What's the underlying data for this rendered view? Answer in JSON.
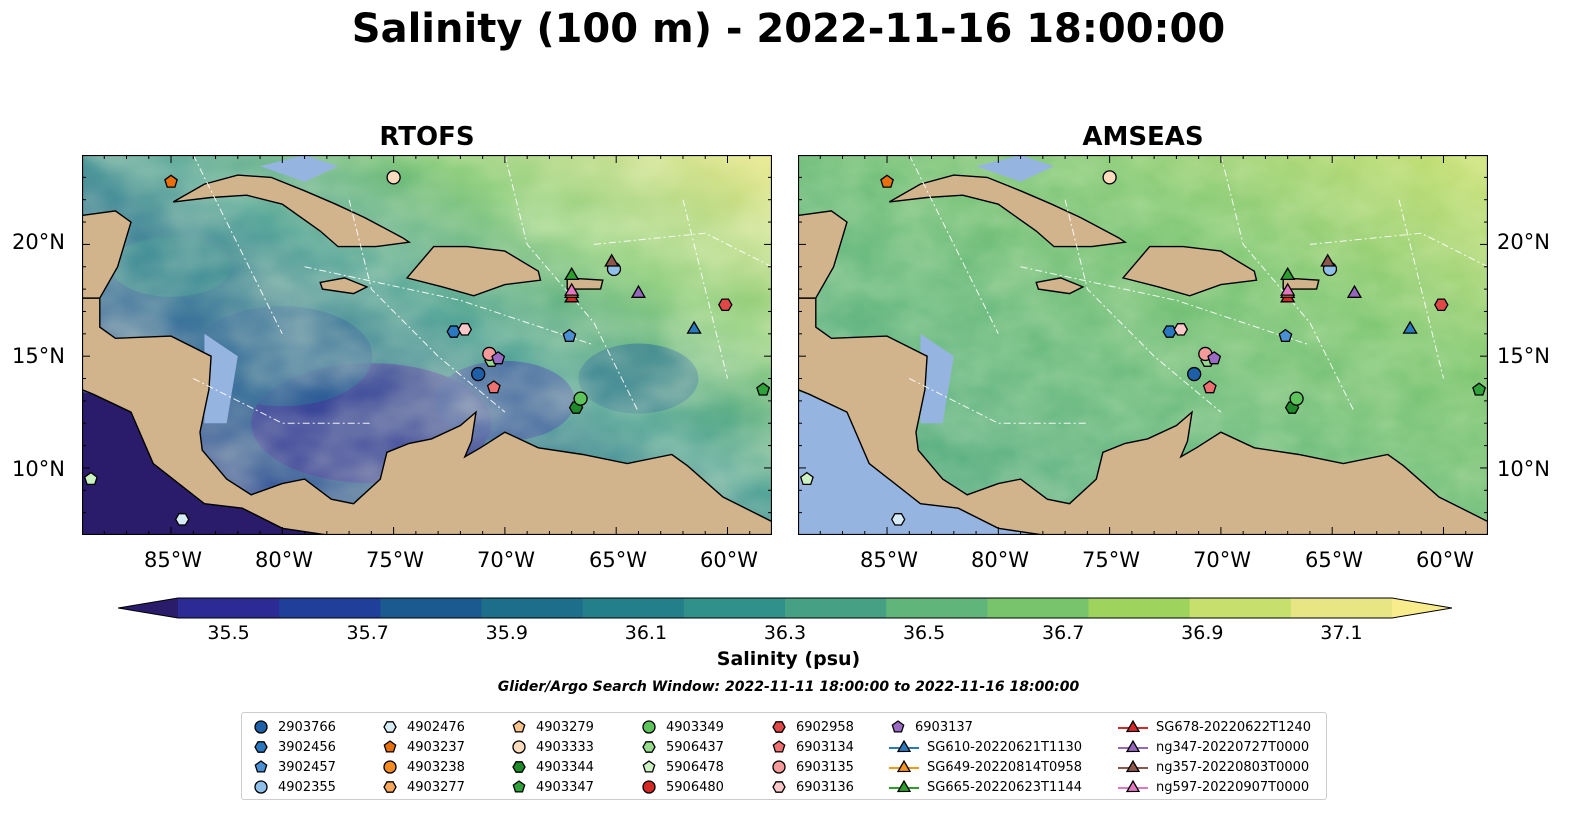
{
  "title": "Salinity (100 m) - 2022-11-16 18:00:00",
  "panels": [
    {
      "id": "rtofs",
      "title": "RTOFS"
    },
    {
      "id": "amseas",
      "title": "AMSEAS"
    }
  ],
  "map": {
    "lon_range": [
      -89,
      -58
    ],
    "lat_range": [
      7,
      24
    ],
    "lat_ticks": [
      {
        "value": 20,
        "label": "20°N"
      },
      {
        "value": 15,
        "label": "15°N"
      },
      {
        "value": 10,
        "label": "10°N"
      }
    ],
    "lon_ticks": [
      {
        "value": -85,
        "label": "85°W"
      },
      {
        "value": -80,
        "label": "80°W"
      },
      {
        "value": -75,
        "label": "75°W"
      },
      {
        "value": -70,
        "label": "70°W"
      },
      {
        "value": -65,
        "label": "65°W"
      },
      {
        "value": -60,
        "label": "60°W"
      }
    ],
    "colors": {
      "land": "#d2b48c",
      "shallow": "#96b4e0",
      "deep": "#2a1b6b"
    }
  },
  "colorbar": {
    "label": "Salinity (psu)",
    "min": 35.4,
    "max": 37.2,
    "ticks": [
      "35.5",
      "35.7",
      "35.9",
      "36.1",
      "36.3",
      "36.5",
      "36.7",
      "36.9",
      "37.1"
    ],
    "colors": [
      "#2a1b6b",
      "#2c2a94",
      "#1f3f9a",
      "#1a5a90",
      "#1d6e8a",
      "#23808a",
      "#2f918a",
      "#46a184",
      "#5fb57a",
      "#78c46d",
      "#9ed45e",
      "#c7df6c",
      "#e8e584",
      "#f9ec8c"
    ]
  },
  "search_window": "Glider/Argo Search Window: 2022-11-11 18:00:00 to 2022-11-16 18:00:00",
  "legend": [
    {
      "label": "2903766",
      "shape": "circle",
      "color": "#1f5fa8"
    },
    {
      "label": "3902456",
      "shape": "hexagon",
      "color": "#2b78c2"
    },
    {
      "label": "3902457",
      "shape": "pentagon",
      "color": "#4a90d4"
    },
    {
      "label": "4902355",
      "shape": "circle",
      "color": "#8ec0ea"
    },
    {
      "label": "4902476",
      "shape": "hexagon",
      "color": "#d8ecf8"
    },
    {
      "label": "4903237",
      "shape": "pentagon",
      "color": "#e86f0c"
    },
    {
      "label": "4903238",
      "shape": "circle",
      "color": "#f58a22"
    },
    {
      "label": "4903277",
      "shape": "hexagon",
      "color": "#f8a85a"
    },
    {
      "label": "4903279",
      "shape": "pentagon",
      "color": "#f9c48c"
    },
    {
      "label": "4903333",
      "shape": "circle",
      "color": "#fbdcbc"
    },
    {
      "label": "4903344",
      "shape": "hexagon",
      "color": "#1e8a2a"
    },
    {
      "label": "4903347",
      "shape": "pentagon",
      "color": "#2fa23a"
    },
    {
      "label": "4903349",
      "shape": "circle",
      "color": "#5cc45a"
    },
    {
      "label": "5906437",
      "shape": "hexagon",
      "color": "#96dc8c"
    },
    {
      "label": "5906478",
      "shape": "pentagon",
      "color": "#ccf2c4"
    },
    {
      "label": "5906480",
      "shape": "circle",
      "color": "#d42a26"
    },
    {
      "label": "6902958",
      "shape": "hexagon",
      "color": "#e04848"
    },
    {
      "label": "6903134",
      "shape": "pentagon",
      "color": "#ee7070"
    },
    {
      "label": "6903135",
      "shape": "circle",
      "color": "#f59a9a"
    },
    {
      "label": "6903136",
      "shape": "hexagon",
      "color": "#fac8c8"
    },
    {
      "label": "6903137",
      "shape": "pentagon",
      "color": "#9a6ac4"
    },
    {
      "label": "SG610-20220621T1130",
      "shape": "triangle",
      "color": "#2a7ac0",
      "line": true
    },
    {
      "label": "SG649-20220814T0958",
      "shape": "triangle",
      "color": "#f7941d",
      "line": true
    },
    {
      "label": "SG665-20220623T1144",
      "shape": "triangle",
      "color": "#2ca02c",
      "line": true
    },
    {
      "label": "SG678-20220622T1240",
      "shape": "triangle",
      "color": "#d62728",
      "line": true
    },
    {
      "label": "ng347-20220727T0000",
      "shape": "triangle",
      "color": "#9467bd",
      "line": true
    },
    {
      "label": "ng357-20220803T0000",
      "shape": "triangle",
      "color": "#8c564b",
      "line": true
    },
    {
      "label": "ng597-20220907T0000",
      "shape": "triangle",
      "color": "#e377c2",
      "line": true
    }
  ],
  "floats": [
    {
      "id": "2903766",
      "lon": -71.2,
      "lat": 14.2
    },
    {
      "id": "3902456",
      "lon": -72.3,
      "lat": 16.1
    },
    {
      "id": "3902457",
      "lon": -67.1,
      "lat": 15.9
    },
    {
      "id": "4902355",
      "lon": -65.1,
      "lat": 18.9
    },
    {
      "id": "4902476",
      "lon": -84.5,
      "lat": 7.7
    },
    {
      "id": "4903237",
      "lon": -85.0,
      "lat": 22.8
    },
    {
      "id": "4903333",
      "lon": -75.0,
      "lat": 23.0
    },
    {
      "id": "4903344",
      "lon": -66.8,
      "lat": 12.7
    },
    {
      "id": "4903347",
      "lon": -58.4,
      "lat": 13.5
    },
    {
      "id": "4903349",
      "lon": -66.6,
      "lat": 13.1
    },
    {
      "id": "5906437",
      "lon": -70.6,
      "lat": 14.8
    },
    {
      "id": "5906478",
      "lon": -88.6,
      "lat": 9.5
    },
    {
      "id": "6902958",
      "lon": -60.1,
      "lat": 17.3
    },
    {
      "id": "6903134",
      "lon": -70.5,
      "lat": 13.6
    },
    {
      "id": "6903135",
      "lon": -70.7,
      "lat": 15.1
    },
    {
      "id": "6903136",
      "lon": -71.8,
      "lat": 16.2
    },
    {
      "id": "6903137",
      "lon": -70.3,
      "lat": 14.9
    },
    {
      "id": "SG610-20220621T1130",
      "lon": -61.5,
      "lat": 16.2
    },
    {
      "id": "SG665-20220623T1144",
      "lon": -67.0,
      "lat": 18.6
    },
    {
      "id": "SG678-20220622T1240",
      "lon": -67.0,
      "lat": 17.6
    },
    {
      "id": "SG649-20220814T0958",
      "lon": -67.0,
      "lat": 17.8
    },
    {
      "id": "ng347-20220727T0000",
      "lon": -64.0,
      "lat": 17.8
    },
    {
      "id": "ng357-20220803T0000",
      "lon": -65.2,
      "lat": 19.2
    },
    {
      "id": "ng597-20220907T0000",
      "lon": -67.0,
      "lat": 17.9
    }
  ]
}
